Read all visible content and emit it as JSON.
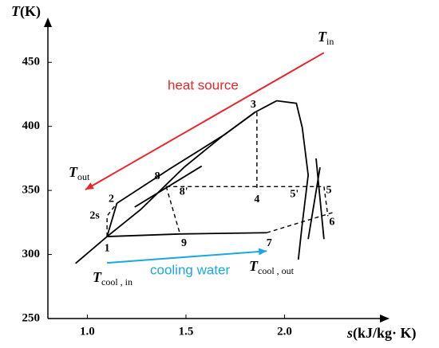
{
  "chart_data": {
    "type": "line",
    "x_label": {
      "symbol": "s",
      "unit": "(kJ/kg· K)"
    },
    "y_label": {
      "symbol": "T",
      "unit": "(K)"
    },
    "xlim": [
      0.8,
      2.5
    ],
    "ylim": [
      250,
      480
    ],
    "xticks": [
      {
        "value": 1,
        "label": "1.0"
      },
      {
        "value": 1.5,
        "label": "1.5"
      },
      {
        "value": 2,
        "label": "2.0"
      }
    ],
    "yticks": [
      250,
      300,
      350,
      400,
      450
    ],
    "points": [
      {
        "label": "1",
        "s": 1.1,
        "T": 314
      },
      {
        "label": "2",
        "s": 1.15,
        "T": 340
      },
      {
        "label": "2s",
        "s": 1.09,
        "T": 330
      },
      {
        "label": "3",
        "s": 1.85,
        "T": 411
      },
      {
        "label": "4",
        "s": 1.86,
        "T": 352
      },
      {
        "label": "5",
        "s": 2.18,
        "T": 353
      },
      {
        "label": "5'",
        "s": 2.07,
        "T": 353
      },
      {
        "label": "6",
        "s": 2.22,
        "T": 330
      },
      {
        "label": "7",
        "s": 1.91,
        "T": 316
      },
      {
        "label": "8",
        "s": 1.42,
        "T": 367
      },
      {
        "label": "8'",
        "s": 1.4,
        "T": 353
      },
      {
        "label": "9",
        "s": 1.47,
        "T": 316
      }
    ],
    "curves": [
      {
        "x": [
          0.94,
          1.1,
          1.27,
          1.49,
          1.69,
          1.85,
          1.96,
          2.06,
          2.09,
          2.12,
          2.09,
          2.07
        ],
        "y": [
          293,
          314,
          335,
          368,
          393,
          411,
          420,
          418,
          399,
          362,
          324,
          296
        ],
        "dashed": false
      },
      {
        "x": [
          1.1,
          1.15
        ],
        "y": [
          314,
          340
        ],
        "dashed": false
      },
      {
        "x": [
          1.15,
          1.42,
          1.7,
          1.85
        ],
        "y": [
          340,
          367,
          394,
          411
        ],
        "dashed": false
      },
      {
        "x": [
          1.24,
          1.58
        ],
        "y": [
          337,
          369
        ],
        "dashed": false
      },
      {
        "x": [
          1.1,
          1.47,
          1.91
        ],
        "y": [
          314,
          316,
          317
        ],
        "dashed": false
      },
      {
        "x": [
          2.16,
          2.2
        ],
        "y": [
          375,
          312
        ],
        "dashed": false
      },
      {
        "x": [
          2.12,
          2.18
        ],
        "y": [
          312,
          368
        ],
        "dashed": false
      },
      {
        "x": [
          1.1,
          1.1,
          1.15
        ],
        "y": [
          314,
          330,
          340
        ],
        "dashed": true
      },
      {
        "x": [
          1.86,
          1.86
        ],
        "y": [
          411,
          352
        ],
        "dashed": true
      },
      {
        "x": [
          1.4,
          2.2
        ],
        "y": [
          353,
          353
        ],
        "dashed": true
      },
      {
        "x": [
          1.4,
          1.47
        ],
        "y": [
          353,
          316
        ],
        "dashed": true
      },
      {
        "x": [
          2.2,
          2.22
        ],
        "y": [
          353,
          330
        ],
        "dashed": true
      },
      {
        "x": [
          1.91,
          2.25
        ],
        "y": [
          317,
          333
        ],
        "dashed": true
      }
    ],
    "arrows": [
      {
        "x": [
          2.2,
          0.99
        ],
        "y": [
          457.5,
          350.6
        ],
        "color": "#e8262a"
      },
      {
        "x": [
          1.1,
          1.91
        ],
        "y": [
          293.4,
          302.7
        ],
        "color": "#1aa7e0"
      }
    ],
    "annotations": [
      {
        "text": "T",
        "sub": "in"
      },
      {
        "text": "T",
        "sub": "out"
      },
      {
        "text": "T",
        "sub": "cool , in"
      },
      {
        "text": "T",
        "sub": "cool , out"
      },
      {
        "text": "heat source",
        "color": "#e8262a"
      },
      {
        "text": "cooling water",
        "color": "#1aa7e0"
      }
    ]
  }
}
